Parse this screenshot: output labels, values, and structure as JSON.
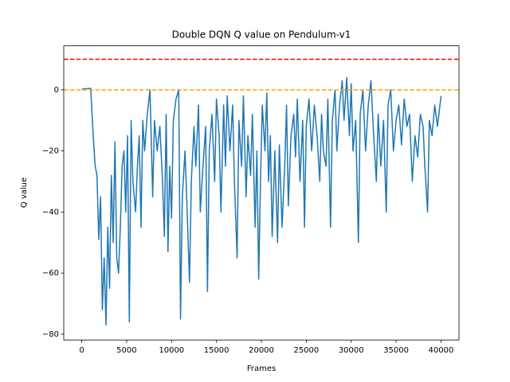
{
  "chart_data": {
    "type": "line",
    "title": "Double DQN Q value on Pendulum-v1",
    "x_label": "Frames",
    "y_label": "Q value",
    "x": [
      0,
      300,
      600,
      1000,
      1300,
      1500,
      1700,
      1900,
      2100,
      2300,
      2500,
      2700,
      2900,
      3100,
      3300,
      3500,
      3700,
      3900,
      4100,
      4300,
      4500,
      4700,
      4900,
      5100,
      5300,
      5500,
      5700,
      6000,
      6200,
      6400,
      6600,
      6800,
      7000,
      7300,
      7600,
      7900,
      8100,
      8400,
      8700,
      9000,
      9200,
      9400,
      9600,
      9800,
      10000,
      10200,
      10500,
      10800,
      11000,
      11200,
      11500,
      11800,
      12000,
      12200,
      12500,
      12700,
      13000,
      13200,
      13500,
      13800,
      14000,
      14200,
      14500,
      14800,
      15000,
      15300,
      15500,
      15800,
      16000,
      16200,
      16500,
      16800,
      17000,
      17300,
      17500,
      17800,
      18000,
      18300,
      18500,
      18800,
      19000,
      19300,
      19500,
      19700,
      19900,
      20100,
      20400,
      20600,
      20800,
      21000,
      21200,
      21500,
      21800,
      22000,
      22300,
      22600,
      22800,
      23000,
      23300,
      23600,
      23800,
      24000,
      24300,
      24600,
      24800,
      25000,
      25300,
      25600,
      25900,
      26200,
      26500,
      26700,
      26900,
      27200,
      27400,
      27700,
      27900,
      28200,
      28400,
      28700,
      29000,
      29200,
      29500,
      29800,
      30000,
      30200,
      30500,
      30800,
      31000,
      31300,
      31600,
      31900,
      32200,
      32500,
      32800,
      33000,
      33300,
      33600,
      33900,
      34100,
      34400,
      34700,
      35000,
      35300,
      35600,
      35900,
      36200,
      36500,
      36800,
      37100,
      37400,
      37700,
      38000,
      38200,
      38500,
      38700,
      39000,
      39300,
      39600,
      40000
    ],
    "series": [
      {
        "name": "Q value",
        "color": "#1f77b4",
        "values": [
          0.2,
          0.3,
          0.4,
          0.5,
          -16,
          -25,
          -28,
          -49,
          -35,
          -72,
          -55,
          -77,
          -45,
          -65,
          -28,
          -50,
          -17,
          -55,
          -60,
          -45,
          -25,
          -20,
          -40,
          -15,
          -76,
          -10,
          -30,
          -40,
          -25,
          -15,
          -45,
          -10,
          -20,
          -8,
          0,
          -35,
          -10,
          -20,
          -12,
          -30,
          -48,
          -8,
          -53,
          -25,
          -42,
          -10,
          -3,
          0,
          -75,
          -35,
          -20,
          -45,
          -63,
          -30,
          -12,
          -25,
          -5,
          -40,
          -25,
          -12,
          -66,
          -20,
          -8,
          -30,
          -3,
          -15,
          -40,
          -5,
          -25,
          -2,
          -20,
          -5,
          -30,
          -55,
          -10,
          -25,
          -2,
          -35,
          -15,
          -28,
          -8,
          -45,
          -20,
          -62,
          -30,
          -5,
          -20,
          -1,
          -30,
          -15,
          -48,
          -20,
          -50,
          -18,
          -45,
          -25,
          -5,
          -38,
          -15,
          -8,
          -22,
          -3,
          -30,
          -10,
          -45,
          -12,
          -3,
          -20,
          -5,
          -15,
          -30,
          -8,
          -20,
          -25,
          -3,
          -45,
          -10,
          0,
          -20,
          -5,
          3,
          -10,
          4,
          -15,
          2,
          -20,
          -10,
          -50,
          -8,
          0,
          -20,
          -5,
          3,
          -15,
          -30,
          -8,
          -25,
          -10,
          -40,
          -5,
          0,
          -20,
          -10,
          -5,
          -18,
          -3,
          -12,
          -8,
          -30,
          -15,
          -22,
          -8,
          -12,
          -25,
          -40,
          -10,
          -15,
          -5,
          -12,
          -2
        ]
      }
    ],
    "hlines": [
      {
        "value": 10,
        "color": "#ff0000"
      },
      {
        "value": 0,
        "color": "#ffa500"
      }
    ],
    "xlim": [
      -2000,
      42000
    ],
    "ylim": [
      -81.9,
      14.4
    ],
    "xticks": [
      0,
      5000,
      10000,
      15000,
      20000,
      25000,
      30000,
      35000,
      40000
    ],
    "yticks": [
      {
        "value": -80,
        "label": "−80"
      },
      {
        "value": -60,
        "label": "−60"
      },
      {
        "value": -40,
        "label": "−40"
      },
      {
        "value": -20,
        "label": "−20"
      },
      0
    ]
  }
}
